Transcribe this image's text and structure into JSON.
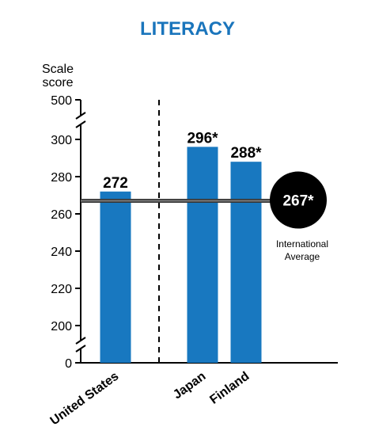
{
  "chart_data": {
    "type": "bar",
    "title": "LITERACY",
    "ylabel_lines": [
      "Scale",
      "score"
    ],
    "categories": [
      "United States",
      "Japan",
      "Finland"
    ],
    "values": [
      272,
      296,
      288
    ],
    "data_labels": [
      "272",
      "296*",
      "288*"
    ],
    "axis_break": true,
    "ylim": [
      190,
      310
    ],
    "yticks": [
      0,
      200,
      220,
      240,
      260,
      280,
      300,
      500
    ],
    "reference_line": {
      "value": 267,
      "label": "267*",
      "caption_lines": [
        "International",
        "Average"
      ]
    },
    "grid": false,
    "legend": "none"
  },
  "colors": {
    "title": "#1a75bc",
    "bar": "#1878c0",
    "axis": "#000000",
    "reference_line": "#555555",
    "badge": "#000000"
  }
}
